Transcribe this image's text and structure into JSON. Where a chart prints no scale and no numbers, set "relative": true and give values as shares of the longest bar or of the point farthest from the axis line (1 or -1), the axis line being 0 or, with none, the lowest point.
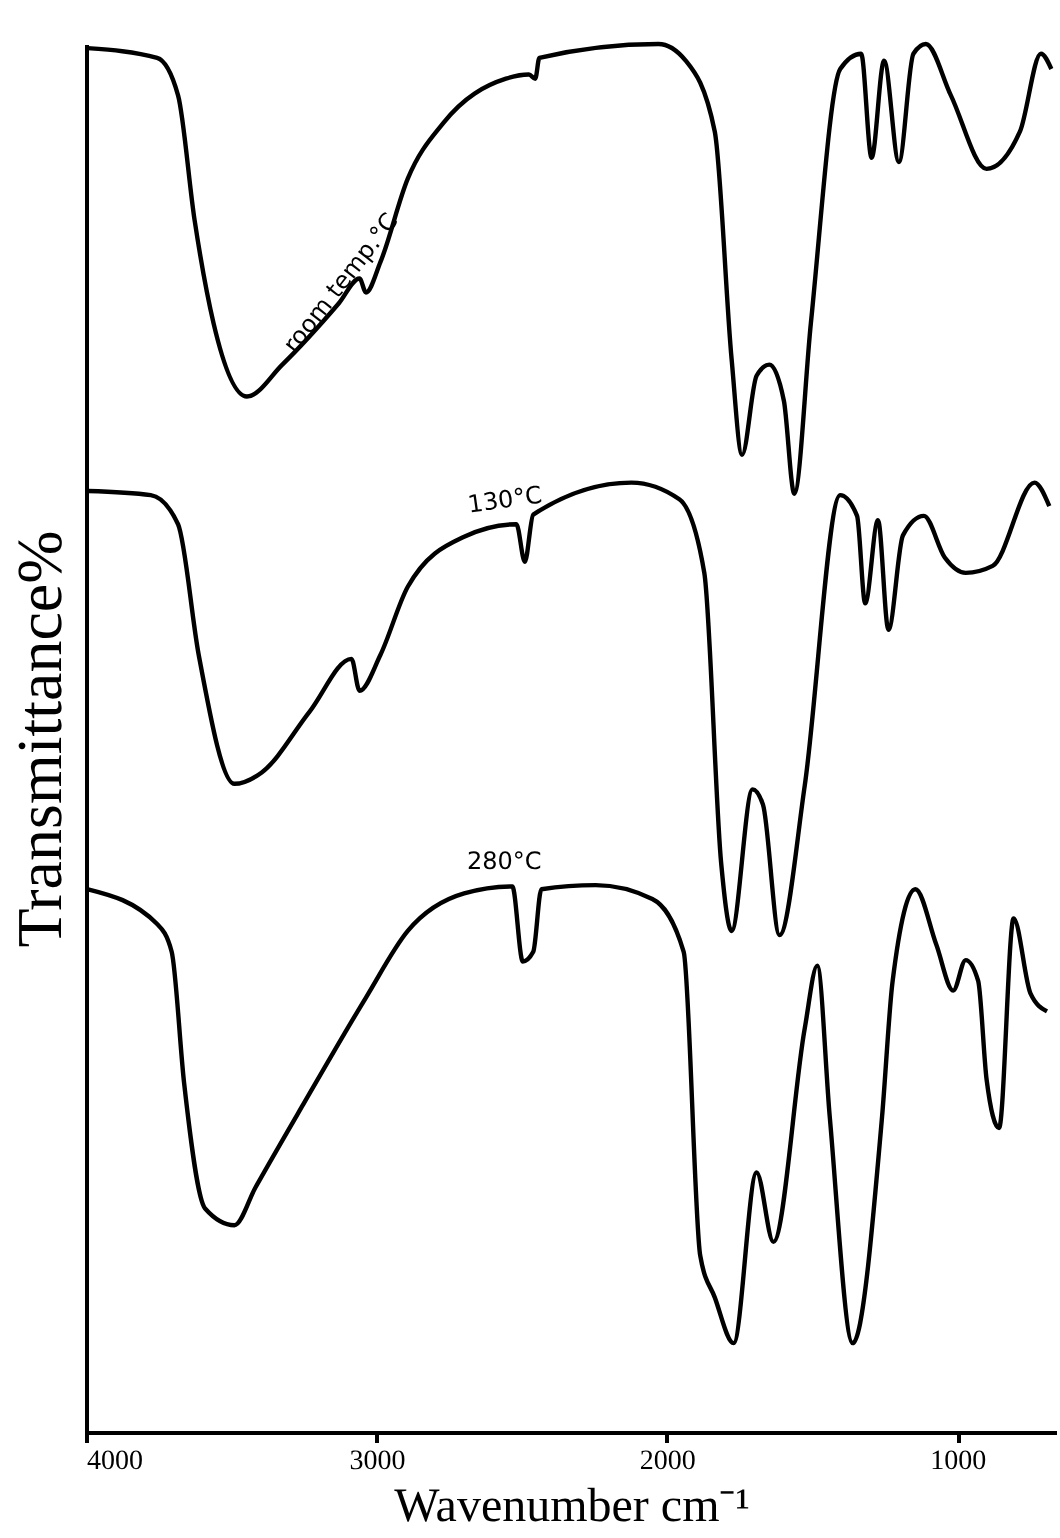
{
  "chart_data": {
    "type": "line",
    "relative": true,
    "xlabel": "Wavenumber cm⁻¹",
    "ylabel": "Transmittance%",
    "xlim": [
      4000,
      660
    ],
    "xticks": [
      4000,
      3000,
      2000,
      1000
    ],
    "grid": false,
    "legend": false,
    "marker": "none",
    "line_style": "solid",
    "series": [
      {
        "name": "room temp.°C",
        "color": "#000000",
        "x": [
          3995,
          3755,
          3683,
          3626,
          3561,
          3446,
          3324,
          3130,
          3058,
          3036,
          2986,
          2892,
          2770,
          2554,
          2475,
          2453,
          2439,
          2029,
          1935,
          1835,
          1777,
          1741,
          1691,
          1647,
          1597,
          1561,
          1504,
          1403,
          1331,
          1295,
          1252,
          1201,
          1151,
          1108,
          1022,
          899,
          784,
          712,
          676
        ],
        "values": [
          0.997,
          0.99,
          0.963,
          0.873,
          0.799,
          0.746,
          0.769,
          0.813,
          0.831,
          0.821,
          0.843,
          0.903,
          0.943,
          0.975,
          0.978,
          0.975,
          0.99,
          1.0,
          0.988,
          0.937,
          0.773,
          0.704,
          0.761,
          0.769,
          0.743,
          0.676,
          0.799,
          0.982,
          0.993,
          0.918,
          0.988,
          0.915,
          0.993,
          1.0,
          0.963,
          0.91,
          0.937,
          0.993,
          0.982
        ]
      },
      {
        "name": "130°C",
        "color": "#000000",
        "x": [
          3993,
          3777,
          3683,
          3612,
          3489,
          3396,
          3230,
          3086,
          3058,
          2986,
          2892,
          2698,
          2518,
          2489,
          2460,
          2122,
          1957,
          1871,
          1813,
          1777,
          1705,
          1669,
          1612,
          1525,
          1403,
          1345,
          1317,
          1273,
          1237,
          1187,
          1115,
          1043,
          971,
          878,
          734,
          683
        ],
        "values": [
          0.678,
          0.675,
          0.654,
          0.56,
          0.467,
          0.475,
          0.519,
          0.557,
          0.534,
          0.56,
          0.609,
          0.645,
          0.654,
          0.627,
          0.661,
          0.684,
          0.672,
          0.619,
          0.41,
          0.361,
          0.463,
          0.452,
          0.358,
          0.466,
          0.675,
          0.66,
          0.597,
          0.657,
          0.578,
          0.646,
          0.66,
          0.63,
          0.619,
          0.624,
          0.684,
          0.667
        ]
      },
      {
        "name": "280°C",
        "color": "#000000",
        "x": [
          3993,
          3755,
          3705,
          3662,
          3590,
          3489,
          3417,
          3252,
          3036,
          2892,
          2698,
          2532,
          2496,
          2460,
          2432,
          2245,
          2050,
          1942,
          1885,
          1835,
          1770,
          1691,
          1633,
          1525,
          1482,
          1439,
          1360,
          1259,
          1223,
          1144,
          1072,
          1014,
          971,
          928,
          899,
          856,
          806,
          748,
          691
        ],
        "values": [
          0.391,
          0.366,
          0.346,
          0.251,
          0.161,
          0.149,
          0.176,
          0.236,
          0.313,
          0.361,
          0.388,
          0.393,
          0.339,
          0.346,
          0.391,
          0.394,
          0.384,
          0.346,
          0.127,
          0.097,
          0.064,
          0.187,
          0.137,
          0.291,
          0.336,
          0.227,
          0.064,
          0.227,
          0.324,
          0.391,
          0.351,
          0.318,
          0.34,
          0.325,
          0.254,
          0.219,
          0.37,
          0.316,
          0.303
        ]
      }
    ]
  }
}
